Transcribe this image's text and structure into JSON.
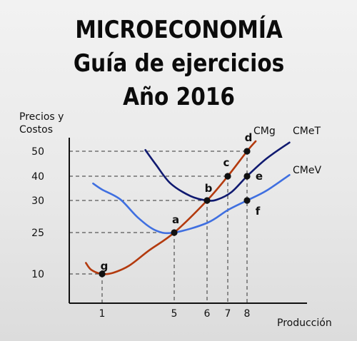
{
  "title": {
    "line1": "MICROECONOMÍA",
    "line2": "Guía de ejercicios",
    "line3": "Año 2016"
  },
  "chart_data": {
    "type": "line",
    "ylabel": [
      "Precios y",
      "Costos"
    ],
    "xlabel": "Producción",
    "x_ticks": [
      1,
      5,
      6,
      7,
      8
    ],
    "y_ticks": [
      10,
      25,
      30,
      40,
      50
    ],
    "xlim": [
      -1,
      12
    ],
    "ylim": [
      0,
      60
    ],
    "grid": false,
    "series": [
      {
        "name": "CMg",
        "color": "#b33a0e",
        "points": [
          [
            0.1,
            14
          ],
          [
            0.4,
            11.5
          ],
          [
            1,
            10
          ],
          [
            1.6,
            10.4
          ],
          [
            2.5,
            13
          ],
          [
            3.6,
            18.5
          ],
          [
            5,
            25
          ],
          [
            6,
            30
          ],
          [
            7,
            40
          ],
          [
            8,
            50
          ],
          [
            8.45,
            54
          ]
        ]
      },
      {
        "name": "CMeT",
        "color": "#101a70",
        "points": [
          [
            3.4,
            50.5
          ],
          [
            4,
            44.5
          ],
          [
            4.8,
            37
          ],
          [
            5.5,
            31.8
          ],
          [
            6,
            30
          ],
          [
            6.5,
            30.4
          ],
          [
            7.2,
            33.5
          ],
          [
            8,
            40
          ],
          [
            9,
            47
          ],
          [
            10.2,
            53.5
          ]
        ]
      },
      {
        "name": "CMeV",
        "color": "#3f6fe0",
        "points": [
          [
            0.5,
            37
          ],
          [
            1,
            34.5
          ],
          [
            2,
            30.5
          ],
          [
            3,
            27.3
          ],
          [
            4,
            25.3
          ],
          [
            5,
            25
          ],
          [
            6,
            26.5
          ],
          [
            7,
            28.5
          ],
          [
            8,
            30
          ],
          [
            9,
            34
          ],
          [
            10.2,
            40.5
          ]
        ]
      }
    ],
    "points": [
      {
        "label": "g",
        "x": 1,
        "y": 10
      },
      {
        "label": "a",
        "x": 5,
        "y": 25
      },
      {
        "label": "b",
        "x": 6,
        "y": 30
      },
      {
        "label": "c",
        "x": 7,
        "y": 40
      },
      {
        "label": "d",
        "x": 8,
        "y": 50
      },
      {
        "label": "e",
        "x": 8,
        "y": 40
      },
      {
        "label": "f",
        "x": 8,
        "y": 30
      }
    ]
  }
}
